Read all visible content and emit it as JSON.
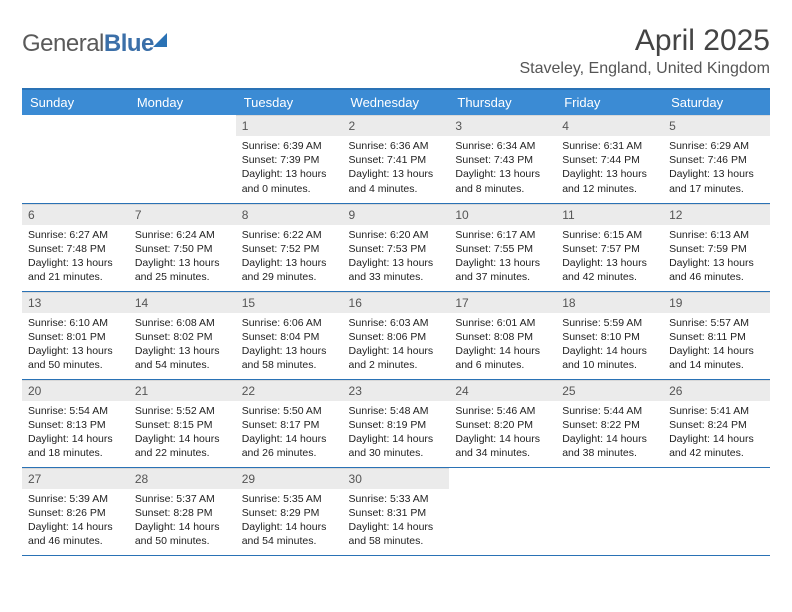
{
  "logo": {
    "part1": "General",
    "part2": "Blue"
  },
  "title": "April 2025",
  "location": "Staveley, England, United Kingdom",
  "colors": {
    "header_bg": "#3b8bd4",
    "border": "#2a72b5",
    "daynum_bg": "#ebebeb",
    "text": "#222222",
    "logo_gray": "#5a5a5a",
    "logo_blue": "#3b6fa8"
  },
  "weekdays": [
    "Sunday",
    "Monday",
    "Tuesday",
    "Wednesday",
    "Thursday",
    "Friday",
    "Saturday"
  ],
  "first_weekday_index": 2,
  "days": [
    {
      "n": 1,
      "sunrise": "6:39 AM",
      "sunset": "7:39 PM",
      "daylight": "13 hours and 0 minutes."
    },
    {
      "n": 2,
      "sunrise": "6:36 AM",
      "sunset": "7:41 PM",
      "daylight": "13 hours and 4 minutes."
    },
    {
      "n": 3,
      "sunrise": "6:34 AM",
      "sunset": "7:43 PM",
      "daylight": "13 hours and 8 minutes."
    },
    {
      "n": 4,
      "sunrise": "6:31 AM",
      "sunset": "7:44 PM",
      "daylight": "13 hours and 12 minutes."
    },
    {
      "n": 5,
      "sunrise": "6:29 AM",
      "sunset": "7:46 PM",
      "daylight": "13 hours and 17 minutes."
    },
    {
      "n": 6,
      "sunrise": "6:27 AM",
      "sunset": "7:48 PM",
      "daylight": "13 hours and 21 minutes."
    },
    {
      "n": 7,
      "sunrise": "6:24 AM",
      "sunset": "7:50 PM",
      "daylight": "13 hours and 25 minutes."
    },
    {
      "n": 8,
      "sunrise": "6:22 AM",
      "sunset": "7:52 PM",
      "daylight": "13 hours and 29 minutes."
    },
    {
      "n": 9,
      "sunrise": "6:20 AM",
      "sunset": "7:53 PM",
      "daylight": "13 hours and 33 minutes."
    },
    {
      "n": 10,
      "sunrise": "6:17 AM",
      "sunset": "7:55 PM",
      "daylight": "13 hours and 37 minutes."
    },
    {
      "n": 11,
      "sunrise": "6:15 AM",
      "sunset": "7:57 PM",
      "daylight": "13 hours and 42 minutes."
    },
    {
      "n": 12,
      "sunrise": "6:13 AM",
      "sunset": "7:59 PM",
      "daylight": "13 hours and 46 minutes."
    },
    {
      "n": 13,
      "sunrise": "6:10 AM",
      "sunset": "8:01 PM",
      "daylight": "13 hours and 50 minutes."
    },
    {
      "n": 14,
      "sunrise": "6:08 AM",
      "sunset": "8:02 PM",
      "daylight": "13 hours and 54 minutes."
    },
    {
      "n": 15,
      "sunrise": "6:06 AM",
      "sunset": "8:04 PM",
      "daylight": "13 hours and 58 minutes."
    },
    {
      "n": 16,
      "sunrise": "6:03 AM",
      "sunset": "8:06 PM",
      "daylight": "14 hours and 2 minutes."
    },
    {
      "n": 17,
      "sunrise": "6:01 AM",
      "sunset": "8:08 PM",
      "daylight": "14 hours and 6 minutes."
    },
    {
      "n": 18,
      "sunrise": "5:59 AM",
      "sunset": "8:10 PM",
      "daylight": "14 hours and 10 minutes."
    },
    {
      "n": 19,
      "sunrise": "5:57 AM",
      "sunset": "8:11 PM",
      "daylight": "14 hours and 14 minutes."
    },
    {
      "n": 20,
      "sunrise": "5:54 AM",
      "sunset": "8:13 PM",
      "daylight": "14 hours and 18 minutes."
    },
    {
      "n": 21,
      "sunrise": "5:52 AM",
      "sunset": "8:15 PM",
      "daylight": "14 hours and 22 minutes."
    },
    {
      "n": 22,
      "sunrise": "5:50 AM",
      "sunset": "8:17 PM",
      "daylight": "14 hours and 26 minutes."
    },
    {
      "n": 23,
      "sunrise": "5:48 AM",
      "sunset": "8:19 PM",
      "daylight": "14 hours and 30 minutes."
    },
    {
      "n": 24,
      "sunrise": "5:46 AM",
      "sunset": "8:20 PM",
      "daylight": "14 hours and 34 minutes."
    },
    {
      "n": 25,
      "sunrise": "5:44 AM",
      "sunset": "8:22 PM",
      "daylight": "14 hours and 38 minutes."
    },
    {
      "n": 26,
      "sunrise": "5:41 AM",
      "sunset": "8:24 PM",
      "daylight": "14 hours and 42 minutes."
    },
    {
      "n": 27,
      "sunrise": "5:39 AM",
      "sunset": "8:26 PM",
      "daylight": "14 hours and 46 minutes."
    },
    {
      "n": 28,
      "sunrise": "5:37 AM",
      "sunset": "8:28 PM",
      "daylight": "14 hours and 50 minutes."
    },
    {
      "n": 29,
      "sunrise": "5:35 AM",
      "sunset": "8:29 PM",
      "daylight": "14 hours and 54 minutes."
    },
    {
      "n": 30,
      "sunrise": "5:33 AM",
      "sunset": "8:31 PM",
      "daylight": "14 hours and 58 minutes."
    }
  ],
  "labels": {
    "sunrise": "Sunrise:",
    "sunset": "Sunset:",
    "daylight": "Daylight:"
  }
}
